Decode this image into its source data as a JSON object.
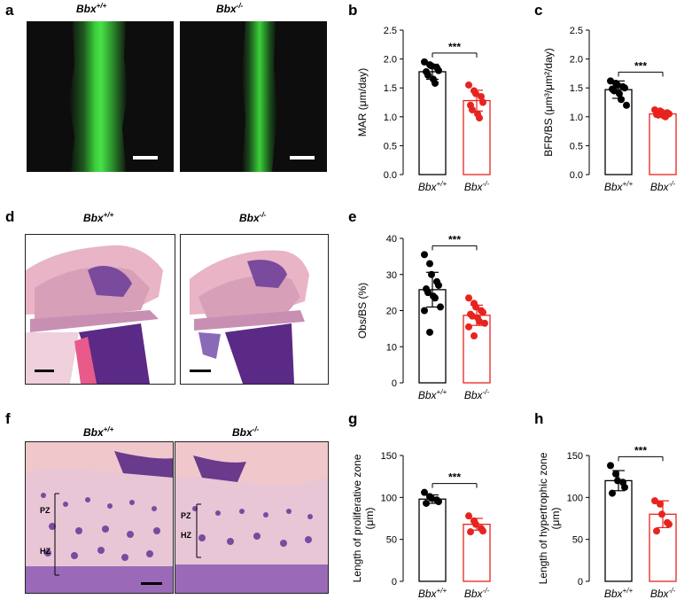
{
  "panel_letters": {
    "a": "a",
    "b": "b",
    "c": "c",
    "d": "d",
    "e": "e",
    "f": "f",
    "g": "g",
    "h": "h"
  },
  "genotypes": {
    "wt_base": "Bbx",
    "wt_sup": "+/+",
    "ko_base": "Bbx",
    "ko_sup": "-/-"
  },
  "histology": {
    "pz": "PZ",
    "hz": "HZ"
  },
  "colors": {
    "wt": "#000000",
    "ko": "#e8231e",
    "fluor": "#3bd13b",
    "he_pink": "#e8b4c6",
    "he_purple": "#5a2a86"
  },
  "chart_data": [
    {
      "id": "b",
      "type": "bar",
      "categories": [
        "Bbx+/+",
        "Bbx-/-"
      ],
      "values": [
        1.78,
        1.28
      ],
      "errors": [
        0.13,
        0.18
      ],
      "points": [
        [
          1.95,
          1.9,
          1.88,
          1.85,
          1.8,
          1.78,
          1.72,
          1.65,
          1.58
        ],
        [
          1.55,
          1.45,
          1.4,
          1.35,
          1.25,
          1.2,
          1.12,
          1.05,
          0.98
        ]
      ],
      "ylabel": "MAR (μm/day)",
      "ylim": [
        0,
        2.5
      ],
      "yticks": [
        "0.0",
        "0.5",
        "1.0",
        "1.5",
        "2.0",
        "2.5"
      ],
      "significance": "***"
    },
    {
      "id": "c",
      "type": "bar",
      "categories": [
        "Bbx+/+",
        "Bbx-/-"
      ],
      "values": [
        1.47,
        1.05
      ],
      "errors": [
        0.15,
        0.04
      ],
      "points": [
        [
          1.62,
          1.58,
          1.55,
          1.52,
          1.5,
          1.48,
          1.45,
          1.4,
          1.3,
          1.2
        ],
        [
          1.12,
          1.1,
          1.08,
          1.07,
          1.05,
          1.04,
          1.03,
          1.02,
          1.0
        ]
      ],
      "ylabel": "BFR/BS (μm³/μm²/day)",
      "ylim": [
        0,
        2.5
      ],
      "yticks": [
        "0.0",
        "0.5",
        "1.0",
        "1.5",
        "2.0",
        "2.5"
      ],
      "significance": "***"
    },
    {
      "id": "e",
      "type": "bar",
      "categories": [
        "Bbx+/+",
        "Bbx-/-"
      ],
      "values": [
        25.8,
        18.7
      ],
      "errors": [
        4.8,
        2.8
      ],
      "points": [
        [
          35.5,
          33.0,
          30.0,
          28.0,
          27.0,
          26.0,
          25.0,
          24.0,
          23.5,
          21.0,
          20.0,
          14.0
        ],
        [
          23.5,
          22.0,
          21.0,
          20.0,
          19.5,
          19.0,
          18.5,
          18.0,
          17.0,
          16.5,
          15.5,
          13.0
        ]
      ],
      "ylabel": "Obs/BS (%)",
      "ylim": [
        0,
        40
      ],
      "yticks": [
        "0",
        "10",
        "20",
        "30",
        "40"
      ],
      "significance": "***"
    },
    {
      "id": "g",
      "type": "bar",
      "categories": [
        "Bbx+/+",
        "Bbx-/-"
      ],
      "values": [
        98,
        68
      ],
      "errors": [
        5,
        7
      ],
      "points": [
        [
          106,
          101,
          99,
          97,
          95,
          93
        ],
        [
          78,
          72,
          68,
          63,
          60,
          59
        ]
      ],
      "ylabel_lines": [
        "Length of proliferative zone",
        "(μm)"
      ],
      "ylim": [
        0,
        150
      ],
      "yticks": [
        "0",
        "50",
        "100",
        "150"
      ],
      "significance": "***"
    },
    {
      "id": "h",
      "type": "bar",
      "categories": [
        "Bbx+/+",
        "Bbx-/-"
      ],
      "values": [
        120,
        80
      ],
      "errors": [
        12,
        16
      ],
      "points": [
        [
          138,
          128,
          120,
          118,
          112,
          105
        ],
        [
          96,
          92,
          80,
          70,
          68,
          60
        ]
      ],
      "ylabel_lines": [
        "Length of hypertrophic zone",
        "(μm)"
      ],
      "ylim": [
        0,
        150
      ],
      "yticks": [
        "0",
        "50",
        "100",
        "150"
      ],
      "significance": "***"
    }
  ]
}
